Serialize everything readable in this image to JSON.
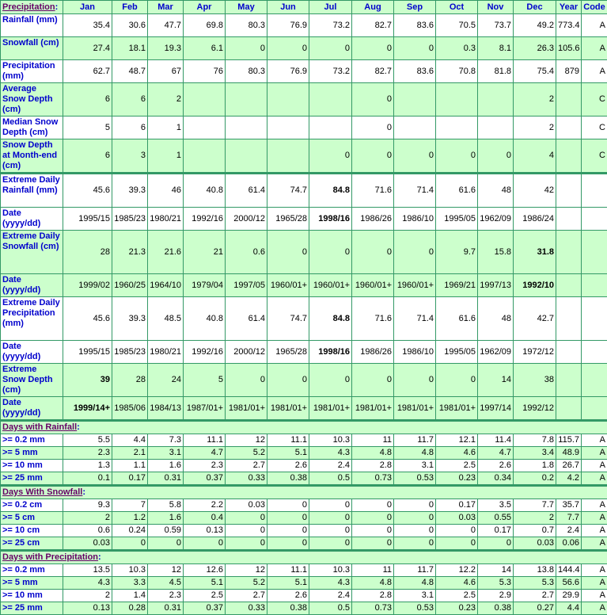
{
  "header": {
    "section_title": "Precipitation",
    "columns": [
      "Jan",
      "Feb",
      "Mar",
      "Apr",
      "May",
      "Jun",
      "Jul",
      "Aug",
      "Sep",
      "Oct",
      "Nov",
      "Dec",
      "Year",
      "Code"
    ]
  },
  "main_rows": [
    {
      "label": "Rainfall (mm)",
      "values": [
        "35.4",
        "30.6",
        "47.7",
        "69.8",
        "80.3",
        "76.9",
        "73.2",
        "82.7",
        "83.6",
        "70.5",
        "73.7",
        "49.2",
        "773.4",
        "A"
      ],
      "bold": []
    },
    {
      "label": "Snowfall (cm)",
      "values": [
        "27.4",
        "18.1",
        "19.3",
        "6.1",
        "0",
        "0",
        "0",
        "0",
        "0",
        "0.3",
        "8.1",
        "26.3",
        "105.6",
        "A"
      ],
      "bold": []
    },
    {
      "label": "Precipitation (mm)",
      "values": [
        "62.7",
        "48.7",
        "67",
        "76",
        "80.3",
        "76.9",
        "73.2",
        "82.7",
        "83.6",
        "70.8",
        "81.8",
        "75.4",
        "879",
        "A"
      ],
      "bold": []
    },
    {
      "label": "Average Snow Depth (cm)",
      "values": [
        "6",
        "6",
        "2",
        "",
        "",
        "",
        "",
        "0",
        "",
        "",
        "",
        "2",
        "",
        "C"
      ],
      "bold": []
    },
    {
      "label": "Median Snow Depth (cm)",
      "values": [
        "5",
        "6",
        "1",
        "",
        "",
        "",
        "",
        "0",
        "",
        "",
        "",
        "2",
        "",
        "C"
      ],
      "bold": []
    },
    {
      "label": "Snow Depth at Month-end (cm)",
      "values": [
        "6",
        "3",
        "1",
        "",
        "",
        "",
        "0",
        "0",
        "0",
        "0",
        "0",
        "4",
        "",
        "C"
      ],
      "bold": []
    },
    {
      "label": "Extreme Daily Rainfall (mm)",
      "values": [
        "45.6",
        "39.3",
        "46",
        "40.8",
        "61.4",
        "74.7",
        "84.8",
        "71.6",
        "71.4",
        "61.6",
        "48",
        "42",
        "",
        ""
      ],
      "bold": [
        6
      ]
    },
    {
      "label": "Date (yyyy/dd)",
      "values": [
        "1995/15",
        "1985/23",
        "1980/21",
        "1992/16",
        "2000/12",
        "1965/28",
        "1998/16",
        "1986/26",
        "1986/10",
        "1995/05",
        "1962/09",
        "1986/24",
        "",
        ""
      ],
      "bold": [
        6
      ]
    },
    {
      "label": "Extreme Daily Snowfall (cm)",
      "values": [
        "28",
        "21.3",
        "21.6",
        "21",
        "0.6",
        "0",
        "0",
        "0",
        "0",
        "9.7",
        "15.8",
        "31.8",
        "",
        ""
      ],
      "bold": [
        11
      ]
    },
    {
      "label": "Date (yyyy/dd)",
      "values": [
        "1999/02",
        "1960/25",
        "1964/10",
        "1979/04",
        "1997/05",
        "1960/01+",
        "1960/01+",
        "1960/01+",
        "1960/01+",
        "1969/21",
        "1997/13",
        "1992/10",
        "",
        ""
      ],
      "bold": [
        11
      ]
    },
    {
      "label": "Extreme Daily Precipitation (mm)",
      "values": [
        "45.6",
        "39.3",
        "48.5",
        "40.8",
        "61.4",
        "74.7",
        "84.8",
        "71.6",
        "71.4",
        "61.6",
        "48",
        "42.7",
        "",
        ""
      ],
      "bold": [
        6
      ]
    },
    {
      "label": "Date (yyyy/dd)",
      "values": [
        "1995/15",
        "1985/23",
        "1980/21",
        "1992/16",
        "2000/12",
        "1965/28",
        "1998/16",
        "1986/26",
        "1986/10",
        "1995/05",
        "1962/09",
        "1972/12",
        "",
        ""
      ],
      "bold": [
        6
      ]
    },
    {
      "label": "Extreme Snow Depth (cm)",
      "values": [
        "39",
        "28",
        "24",
        "5",
        "0",
        "0",
        "0",
        "0",
        "0",
        "0",
        "14",
        "38",
        "",
        ""
      ],
      "bold": [
        0
      ]
    },
    {
      "label": "Date (yyyy/dd)",
      "values": [
        "1999/14+",
        "1985/06",
        "1984/13",
        "1987/01+",
        "1981/01+",
        "1981/01+",
        "1981/01+",
        "1981/01+",
        "1981/01+",
        "1981/01+",
        "1997/14",
        "1992/12",
        "",
        ""
      ],
      "bold": [
        0
      ]
    }
  ],
  "sections": [
    {
      "title": "Days with Rainfall",
      "rows": [
        {
          "label": ">= 0.2 mm",
          "values": [
            "5.5",
            "4.4",
            "7.3",
            "11.1",
            "12",
            "11.1",
            "10.3",
            "11",
            "11.7",
            "12.1",
            "11.4",
            "7.8",
            "115.7",
            "A"
          ]
        },
        {
          "label": ">= 5 mm",
          "values": [
            "2.3",
            "2.1",
            "3.1",
            "4.7",
            "5.2",
            "5.1",
            "4.3",
            "4.8",
            "4.8",
            "4.6",
            "4.7",
            "3.4",
            "48.9",
            "A"
          ]
        },
        {
          "label": ">= 10 mm",
          "values": [
            "1.3",
            "1.1",
            "1.6",
            "2.3",
            "2.7",
            "2.6",
            "2.4",
            "2.8",
            "3.1",
            "2.5",
            "2.6",
            "1.8",
            "26.7",
            "A"
          ]
        },
        {
          "label": ">= 25 mm",
          "values": [
            "0.1",
            "0.17",
            "0.31",
            "0.37",
            "0.33",
            "0.38",
            "0.5",
            "0.73",
            "0.53",
            "0.23",
            "0.34",
            "0.2",
            "4.2",
            "A"
          ]
        }
      ]
    },
    {
      "title": "Days With Snowfall",
      "rows": [
        {
          "label": ">= 0.2 cm",
          "values": [
            "9.3",
            "7",
            "5.8",
            "2.2",
            "0.03",
            "0",
            "0",
            "0",
            "0",
            "0.17",
            "3.5",
            "7.7",
            "35.7",
            "A"
          ]
        },
        {
          "label": ">= 5 cm",
          "values": [
            "2",
            "1.2",
            "1.6",
            "0.4",
            "0",
            "0",
            "0",
            "0",
            "0",
            "0.03",
            "0.55",
            "2",
            "7.7",
            "A"
          ]
        },
        {
          "label": ">= 10 cm",
          "values": [
            "0.6",
            "0.24",
            "0.59",
            "0.13",
            "0",
            "0",
            "0",
            "0",
            "0",
            "0",
            "0.17",
            "0.7",
            "2.4",
            "A"
          ]
        },
        {
          "label": ">= 25 cm",
          "values": [
            "0.03",
            "0",
            "0",
            "0",
            "0",
            "0",
            "0",
            "0",
            "0",
            "0",
            "0",
            "0.03",
            "0.06",
            "A"
          ]
        }
      ]
    },
    {
      "title": "Days with Precipitation",
      "rows": [
        {
          "label": ">= 0.2 mm",
          "values": [
            "13.5",
            "10.3",
            "12",
            "12.6",
            "12",
            "11.1",
            "10.3",
            "11",
            "11.7",
            "12.2",
            "14",
            "13.8",
            "144.4",
            "A"
          ]
        },
        {
          "label": ">= 5 mm",
          "values": [
            "4.3",
            "3.3",
            "4.5",
            "5.1",
            "5.2",
            "5.1",
            "4.3",
            "4.8",
            "4.8",
            "4.6",
            "5.3",
            "5.3",
            "56.6",
            "A"
          ]
        },
        {
          "label": ">= 10 mm",
          "values": [
            "2",
            "1.4",
            "2.3",
            "2.5",
            "2.7",
            "2.6",
            "2.4",
            "2.8",
            "3.1",
            "2.5",
            "2.9",
            "2.7",
            "29.9",
            "A"
          ]
        },
        {
          "label": ">= 25 mm",
          "values": [
            "0.13",
            "0.28",
            "0.31",
            "0.37",
            "0.33",
            "0.38",
            "0.5",
            "0.73",
            "0.53",
            "0.23",
            "0.38",
            "0.27",
            "4.4",
            "A"
          ]
        }
      ]
    }
  ]
}
